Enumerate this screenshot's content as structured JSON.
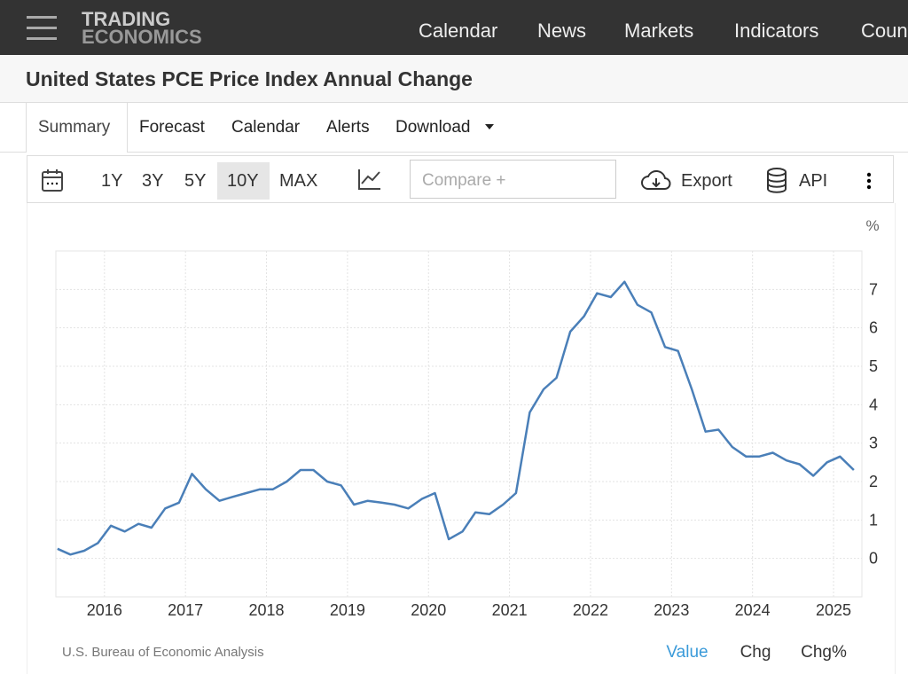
{
  "header": {
    "logo_line1": "TRADING",
    "logo_line2": "ECONOMICS",
    "nav": [
      "Calendar",
      "News",
      "Markets",
      "Indicators",
      "Countries"
    ]
  },
  "page_title": "United States PCE Price Index Annual Change",
  "tabs": [
    "Summary",
    "Forecast",
    "Calendar",
    "Alerts",
    "Download"
  ],
  "toolbar": {
    "ranges": [
      "1Y",
      "3Y",
      "5Y",
      "10Y",
      "MAX"
    ],
    "compare_placeholder": "Compare +",
    "export": "Export",
    "api": "API"
  },
  "chart_data": {
    "type": "line",
    "unit": "%",
    "source": "U.S. Bureau of Economic Analysis",
    "x": [
      2015.42,
      2015.58,
      2015.75,
      2015.92,
      2016.08,
      2016.25,
      2016.42,
      2016.58,
      2016.75,
      2016.92,
      2017.08,
      2017.25,
      2017.42,
      2017.58,
      2017.75,
      2017.92,
      2018.08,
      2018.25,
      2018.42,
      2018.58,
      2018.75,
      2018.92,
      2019.08,
      2019.25,
      2019.42,
      2019.58,
      2019.75,
      2019.92,
      2020.08,
      2020.25,
      2020.42,
      2020.58,
      2020.75,
      2020.92,
      2021.08,
      2021.25,
      2021.42,
      2021.58,
      2021.75,
      2021.92,
      2022.08,
      2022.25,
      2022.42,
      2022.58,
      2022.75,
      2022.92,
      2023.08,
      2023.25,
      2023.42,
      2023.58,
      2023.75,
      2023.92,
      2024.08,
      2024.25,
      2024.42,
      2024.58,
      2024.75,
      2024.92,
      2025.08,
      2025.25
    ],
    "series": [
      {
        "color": "#4a7fb8",
        "values": [
          0.25,
          0.1,
          0.2,
          0.4,
          0.85,
          0.7,
          0.9,
          0.8,
          1.3,
          1.45,
          2.2,
          1.8,
          1.5,
          1.6,
          1.7,
          1.8,
          1.8,
          2.0,
          2.3,
          2.3,
          2.0,
          1.9,
          1.4,
          1.5,
          1.45,
          1.4,
          1.3,
          1.55,
          1.7,
          0.5,
          0.7,
          1.2,
          1.15,
          1.4,
          1.7,
          3.8,
          4.4,
          4.7,
          5.9,
          6.3,
          6.9,
          6.8,
          7.2,
          6.6,
          6.4,
          5.5,
          5.4,
          4.4,
          3.3,
          3.35,
          2.9,
          2.65,
          2.65,
          2.75,
          2.55,
          2.45,
          2.15,
          2.5,
          2.65,
          2.3
        ]
      }
    ],
    "xlim": [
      2015.4,
      2025.35
    ],
    "ylim": [
      -1,
      8
    ],
    "xticks": [
      2016,
      2017,
      2018,
      2019,
      2020,
      2021,
      2022,
      2023,
      2024,
      2025
    ],
    "yticks": [
      0,
      1,
      2,
      3,
      4,
      5,
      6,
      7
    ],
    "grid": true
  },
  "footer_toggles": [
    "Value",
    "Chg",
    "Chg%"
  ]
}
